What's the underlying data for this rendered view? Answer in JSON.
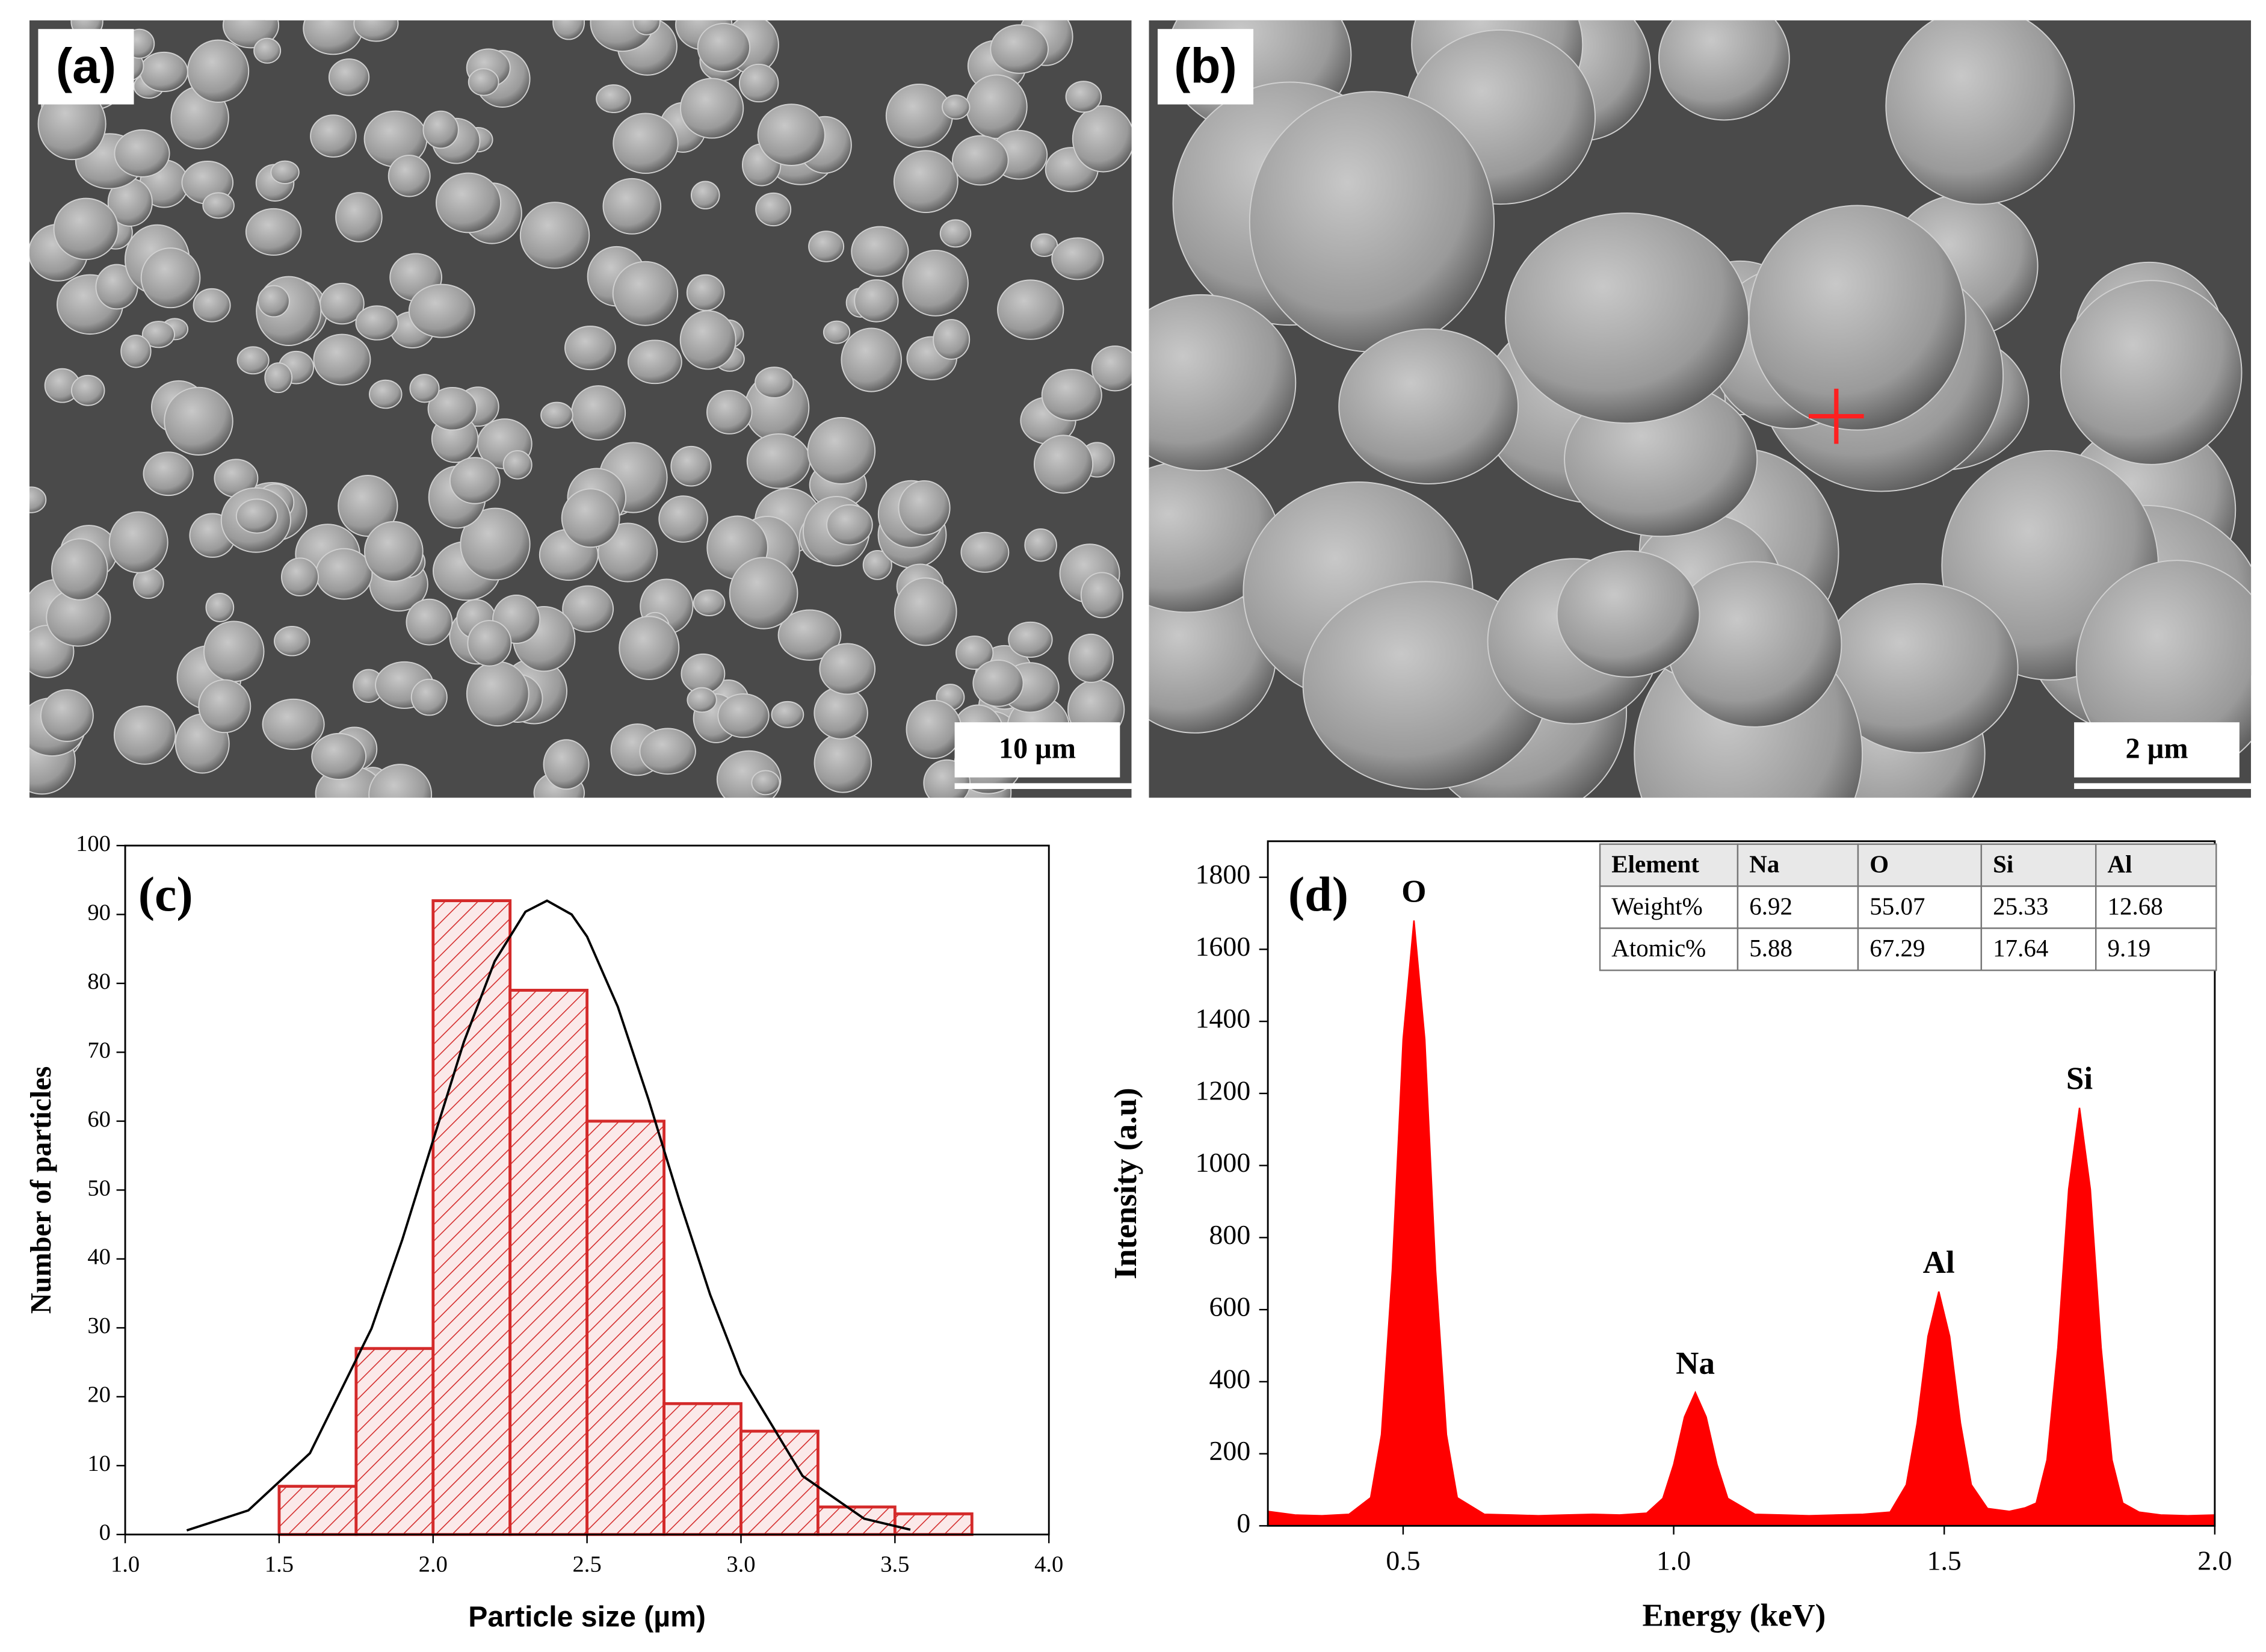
{
  "chart_data": [
    {
      "type": "image",
      "panel_label": "(a)",
      "scale_bar": "10 µm"
    },
    {
      "type": "image",
      "panel_label": "(b)",
      "scale_bar": "2 µm"
    },
    {
      "type": "histogram",
      "panel_label": "(c)",
      "x_label": "Particle size (µm)",
      "y_label": "Number of particles",
      "bins": [
        1.5,
        1.75,
        2.0,
        2.25,
        2.5,
        2.75,
        3.0,
        3.25,
        3.5,
        3.75
      ],
      "counts": [
        7,
        27,
        92,
        79,
        60,
        19,
        15,
        4,
        3
      ],
      "color": "#d42a2a",
      "curve": {
        "x": [
          1.2,
          1.4,
          1.6,
          1.8,
          1.9,
          2.0,
          2.1,
          2.2,
          2.3,
          2.37,
          2.45,
          2.5,
          2.6,
          2.7,
          2.8,
          2.9,
          3.0,
          3.2,
          3.4,
          3.55
        ],
        "values": [
          0.6,
          3.5,
          11.8,
          29.9,
          42.8,
          57.2,
          71.5,
          83.2,
          90.4,
          92,
          90,
          86.8,
          76.6,
          63.1,
          48.5,
          34.8,
          23.3,
          8.5,
          2.3,
          0.7
        ]
      },
      "xlim": [
        1.0,
        4.0
      ],
      "xticks": [
        {
          "value": 1,
          "label": "1.0"
        },
        1.5,
        {
          "value": 2,
          "label": "2.0"
        },
        2.5,
        {
          "value": 3,
          "label": "3.0"
        },
        3.5,
        {
          "value": 4,
          "label": "4.0"
        }
      ],
      "ylim": [
        0,
        100
      ],
      "yticks": [
        0,
        10,
        20,
        30,
        40,
        50,
        60,
        70,
        80,
        90,
        100
      ]
    },
    {
      "type": "area",
      "panel_label": "(d)",
      "x_label": "Energy (keV)",
      "y_label": "Intensity (a.u)",
      "color": "#ff0000",
      "x": [
        0.25,
        0.3,
        0.35,
        0.4,
        0.44,
        0.46,
        0.48,
        0.5,
        0.52,
        0.54,
        0.56,
        0.58,
        0.6,
        0.65,
        0.7,
        0.75,
        0.8,
        0.85,
        0.9,
        0.95,
        0.98,
        1.0,
        1.02,
        1.04,
        1.06,
        1.08,
        1.1,
        1.15,
        1.2,
        1.25,
        1.3,
        1.35,
        1.4,
        1.43,
        1.45,
        1.47,
        1.49,
        1.51,
        1.53,
        1.55,
        1.58,
        1.62,
        1.65,
        1.67,
        1.69,
        1.71,
        1.73,
        1.75,
        1.77,
        1.79,
        1.81,
        1.83,
        1.86,
        1.9,
        1.95,
        2.0
      ],
      "values": [
        40,
        30,
        28,
        32,
        78,
        253,
        708,
        1350,
        1680,
        1350,
        708,
        253,
        78,
        32,
        30,
        28,
        30,
        32,
        30,
        35,
        76,
        170,
        302,
        370,
        302,
        170,
        76,
        32,
        30,
        28,
        30,
        32,
        38,
        114,
        285,
        526,
        650,
        526,
        285,
        114,
        48,
        40,
        50,
        63,
        183,
        494,
        934,
        1160,
        934,
        494,
        183,
        63,
        38,
        30,
        28,
        30
      ],
      "annotations": [
        "O",
        "Na",
        "Al",
        "Si"
      ],
      "xlim": [
        0.25,
        2.0
      ],
      "xticks": [
        0.5,
        {
          "value": 1,
          "label": "1.0"
        },
        1.5,
        {
          "value": 2,
          "label": "2.0"
        }
      ],
      "ylim": [
        0,
        1900
      ],
      "yticks": [
        0,
        200,
        400,
        600,
        800,
        1000,
        1200,
        1400,
        1600,
        1800
      ],
      "table": {
        "header": [
          "Element",
          "Na",
          "O",
          "Si",
          "Al"
        ],
        "rows": [
          [
            "Weight%",
            6.92,
            55.07,
            25.33,
            12.68
          ],
          [
            "Atomic%",
            5.88,
            67.29,
            17.64,
            9.19
          ]
        ]
      }
    }
  ]
}
